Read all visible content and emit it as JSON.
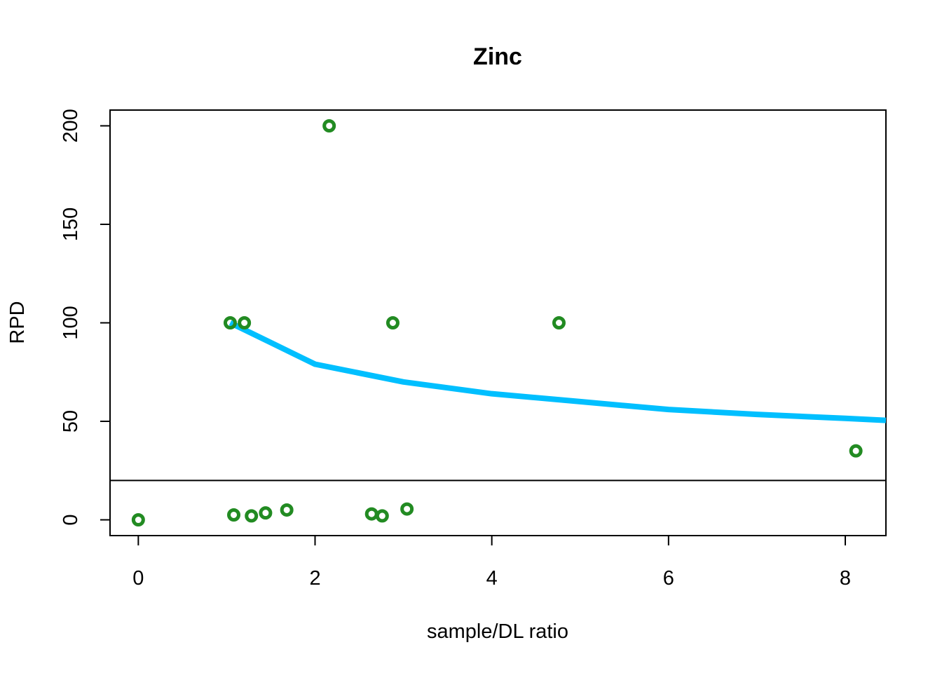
{
  "chart_data": {
    "type": "scatter",
    "title": "Zinc",
    "xlabel": "sample/DL ratio",
    "ylabel": "RPD",
    "xlim": [
      -0.32,
      8.46
    ],
    "ylim": [
      -8,
      208
    ],
    "x_ticks": [
      0,
      2,
      4,
      6,
      8
    ],
    "y_ticks": [
      0,
      50,
      100,
      150,
      200
    ],
    "reference_line": {
      "y": 20,
      "color": "#000000"
    },
    "points": {
      "color": "#228B22",
      "x": [
        0.0,
        1.04,
        1.08,
        1.2,
        1.28,
        1.44,
        1.68,
        2.16,
        2.64,
        2.76,
        2.88,
        3.04,
        4.76,
        8.12
      ],
      "y": [
        0,
        100,
        2.5,
        100,
        2,
        3.5,
        5,
        200,
        3,
        2,
        100,
        5.5,
        100,
        35
      ]
    },
    "fit_line": {
      "color": "#00BFFF",
      "x": [
        1.04,
        2,
        3,
        4,
        5,
        6,
        7,
        8,
        8.46
      ],
      "y": [
        100,
        79,
        70,
        64,
        60,
        56,
        53.5,
        51.5,
        50.5
      ]
    }
  }
}
